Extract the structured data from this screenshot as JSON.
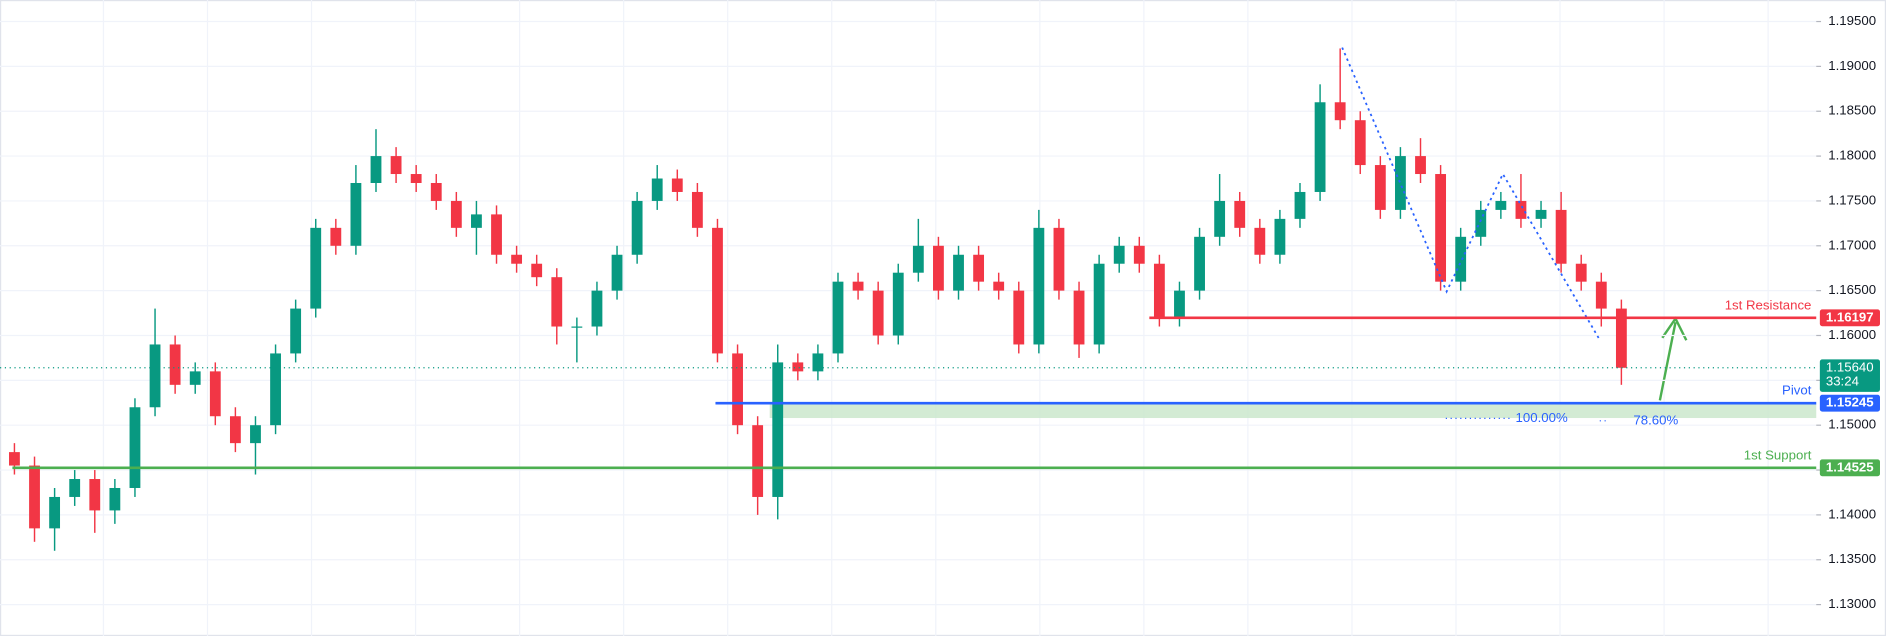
{
  "chart_data": {
    "type": "candlestick",
    "up_color": "#089981",
    "down_color": "#f23645",
    "open": [
      1.147,
      1.1455,
      1.1385,
      1.142,
      1.144,
      1.1405,
      1.143,
      1.152,
      1.159,
      1.1545,
      1.156,
      1.151,
      1.148,
      1.15,
      1.158,
      1.163,
      1.172,
      1.17,
      1.177,
      1.18,
      1.178,
      1.177,
      1.175,
      1.172,
      1.1735,
      1.169,
      1.168,
      1.1665,
      1.161,
      1.161,
      1.165,
      1.169,
      1.175,
      1.1775,
      1.176,
      1.172,
      1.158,
      1.15,
      1.142,
      1.157,
      1.156,
      1.158,
      1.166,
      1.165,
      1.16,
      1.167,
      1.17,
      1.165,
      1.169,
      1.166,
      1.165,
      1.159,
      1.172,
      1.165,
      1.159,
      1.168,
      1.17,
      1.168,
      1.162,
      1.165,
      1.171,
      1.175,
      1.172,
      1.169,
      1.173,
      1.176,
      1.186,
      1.184,
      1.179,
      1.174,
      1.18,
      1.178,
      1.166,
      1.171,
      1.174,
      1.175,
      1.173,
      1.174,
      1.168,
      1.166,
      1.163
    ],
    "high": [
      1.148,
      1.1465,
      1.143,
      1.145,
      1.145,
      1.144,
      1.153,
      1.163,
      1.16,
      1.157,
      1.157,
      1.152,
      1.151,
      1.159,
      1.164,
      1.173,
      1.173,
      1.179,
      1.183,
      1.181,
      1.179,
      1.178,
      1.176,
      1.175,
      1.1745,
      1.17,
      1.169,
      1.1675,
      1.162,
      1.166,
      1.17,
      1.176,
      1.179,
      1.1785,
      1.177,
      1.173,
      1.159,
      1.151,
      1.159,
      1.158,
      1.159,
      1.167,
      1.167,
      1.166,
      1.168,
      1.173,
      1.171,
      1.17,
      1.17,
      1.167,
      1.166,
      1.174,
      1.173,
      1.166,
      1.169,
      1.171,
      1.171,
      1.169,
      1.166,
      1.172,
      1.178,
      1.176,
      1.173,
      1.174,
      1.177,
      1.188,
      1.192,
      1.185,
      1.18,
      1.181,
      1.182,
      1.179,
      1.172,
      1.175,
      1.176,
      1.178,
      1.175,
      1.176,
      1.169,
      1.167,
      1.164
    ],
    "low": [
      1.1445,
      1.137,
      1.136,
      1.141,
      1.138,
      1.139,
      1.142,
      1.151,
      1.1535,
      1.1535,
      1.15,
      1.147,
      1.1445,
      1.149,
      1.157,
      1.162,
      1.169,
      1.169,
      1.176,
      1.177,
      1.176,
      1.174,
      1.171,
      1.169,
      1.168,
      1.167,
      1.1655,
      1.159,
      1.157,
      1.16,
      1.164,
      1.168,
      1.174,
      1.175,
      1.171,
      1.157,
      1.149,
      1.14,
      1.1395,
      1.155,
      1.155,
      1.157,
      1.164,
      1.159,
      1.159,
      1.166,
      1.164,
      1.164,
      1.165,
      1.164,
      1.158,
      1.158,
      1.164,
      1.1575,
      1.158,
      1.167,
      1.167,
      1.161,
      1.161,
      1.164,
      1.17,
      1.171,
      1.168,
      1.168,
      1.172,
      1.175,
      1.183,
      1.178,
      1.173,
      1.173,
      1.177,
      1.165,
      1.165,
      1.17,
      1.173,
      1.172,
      1.172,
      1.167,
      1.165,
      1.161,
      1.1545
    ],
    "close": [
      1.1455,
      1.1385,
      1.142,
      1.144,
      1.1405,
      1.143,
      1.152,
      1.159,
      1.1545,
      1.156,
      1.151,
      1.148,
      1.15,
      1.158,
      1.163,
      1.172,
      1.17,
      1.177,
      1.18,
      1.178,
      1.177,
      1.175,
      1.172,
      1.1735,
      1.169,
      1.168,
      1.1665,
      1.161,
      1.161,
      1.165,
      1.169,
      1.175,
      1.1775,
      1.176,
      1.172,
      1.158,
      1.15,
      1.142,
      1.157,
      1.156,
      1.158,
      1.166,
      1.165,
      1.16,
      1.167,
      1.17,
      1.165,
      1.169,
      1.166,
      1.165,
      1.159,
      1.172,
      1.165,
      1.159,
      1.168,
      1.17,
      1.168,
      1.162,
      1.165,
      1.171,
      1.175,
      1.172,
      1.169,
      1.173,
      1.176,
      1.186,
      1.184,
      1.179,
      1.174,
      1.18,
      1.178,
      1.166,
      1.171,
      1.174,
      1.175,
      1.173,
      1.174,
      1.168,
      1.166,
      1.163,
      1.1564
    ],
    "ylim": [
      1.1265,
      1.1974
    ],
    "yticks": [
      {
        "value": 1.13,
        "label": "1.13000"
      },
      {
        "value": 1.135,
        "label": "1.13500"
      },
      {
        "value": 1.14,
        "label": "1.14000"
      },
      {
        "value": 1.145,
        "label": "1.14500"
      },
      {
        "value": 1.15,
        "label": "1.15000"
      },
      {
        "value": 1.155,
        "label": "1.15500"
      },
      {
        "value": 1.16,
        "label": "1.16000"
      },
      {
        "value": 1.165,
        "label": "1.16500"
      },
      {
        "value": 1.17,
        "label": "1.17000"
      },
      {
        "value": 1.175,
        "label": "1.17500"
      },
      {
        "value": 1.18,
        "label": "1.18000"
      },
      {
        "value": 1.185,
        "label": "1.18500"
      },
      {
        "value": 1.19,
        "label": "1.19000"
      },
      {
        "value": 1.195,
        "label": "1.19500"
      }
    ],
    "grid": true,
    "levels": [
      {
        "name": "1st Resistance",
        "value": 1.16197,
        "color": "#f23645",
        "start": 56.5
      },
      {
        "name": "Pivot",
        "value": 1.15245,
        "color": "#2962ff",
        "start": 34.9
      },
      {
        "name": "1st Support",
        "value": 1.14525,
        "color": "#4caf50",
        "start": -0.1
      }
    ],
    "zone": {
      "low": 1.1508,
      "high": 1.15245,
      "start": 37.6,
      "color": "#c8e6c9"
    },
    "current_price": {
      "value": 1.1564,
      "label": "1.15640",
      "countdown": "33:24",
      "color": "#089981"
    },
    "zigzag": {
      "x": [
        66.1,
        71.3,
        74.1,
        78.9
      ],
      "y": [
        1.1921,
        1.1649,
        1.178,
        1.1596
      ],
      "color": "#2962ff"
    },
    "fib_labels": [
      "100.00%",
      "78.60%"
    ]
  }
}
